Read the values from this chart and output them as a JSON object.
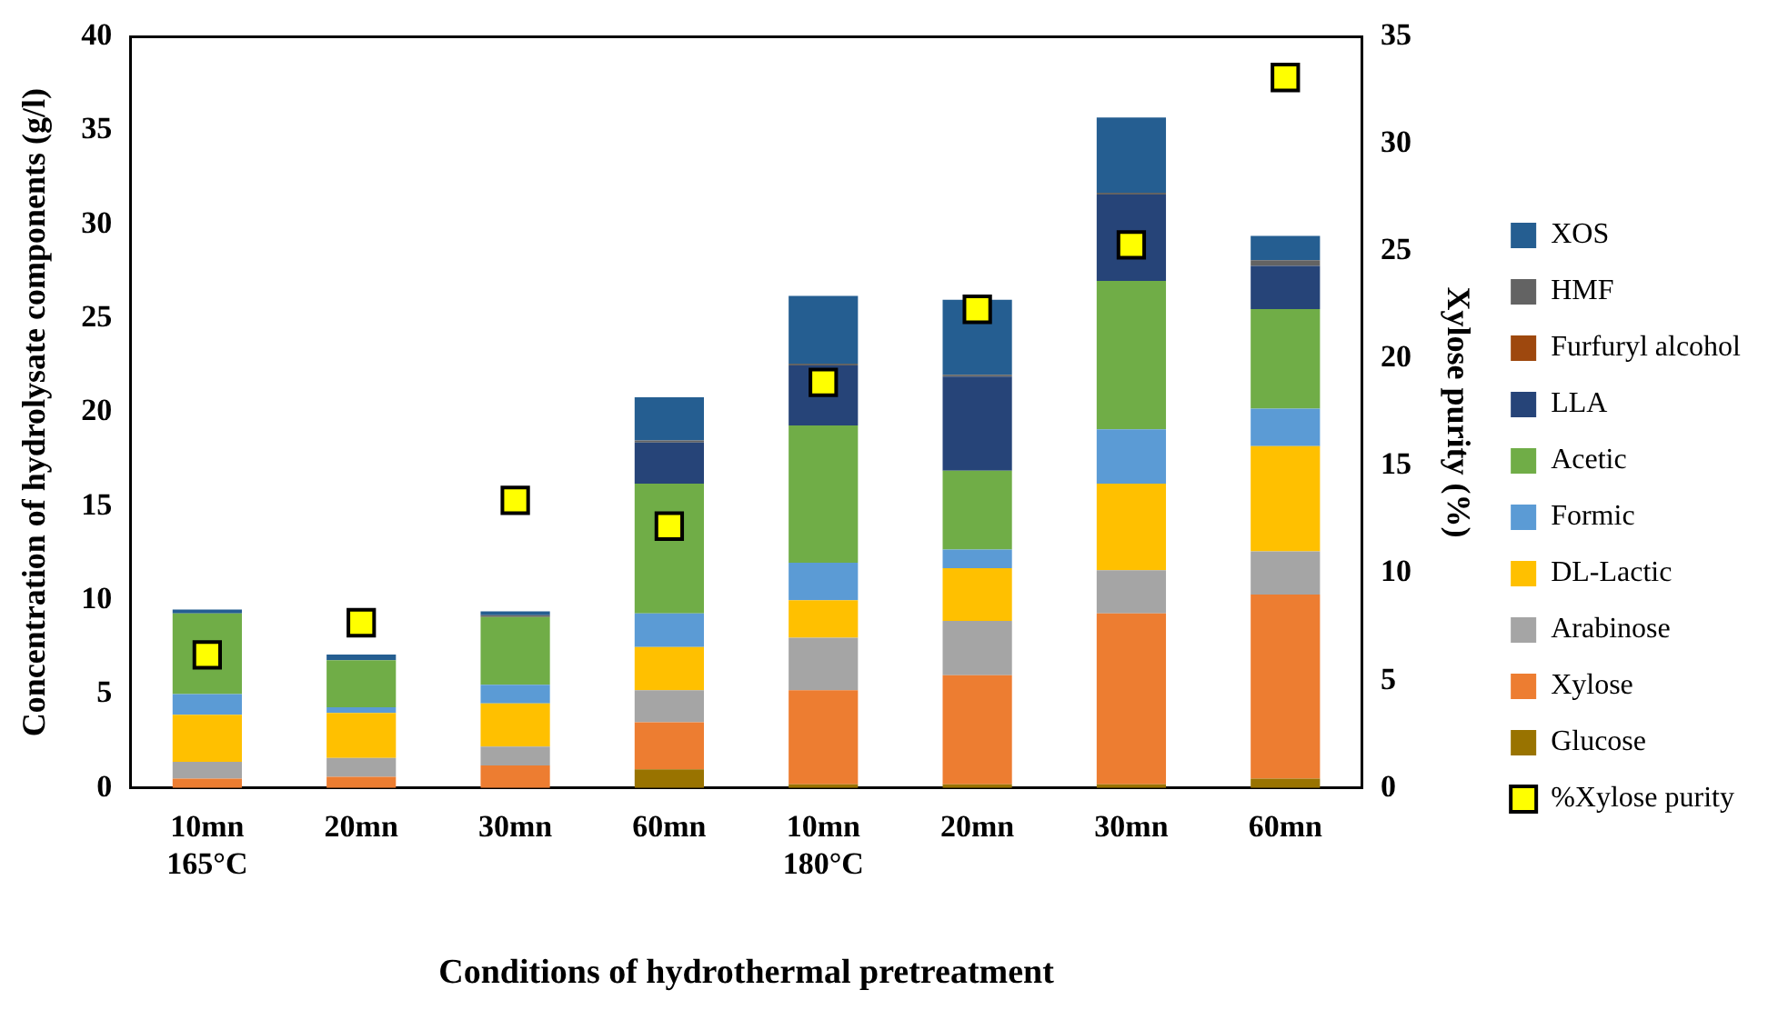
{
  "chart_data": {
    "type": "bar",
    "stacked": true,
    "xlabel": "Conditions of hydrothermal pretreatment",
    "ylabel": "Concentration of hydrolysate components (g/l)",
    "y2label": "Xylose purity (%)",
    "categories": [
      "10mn\n165°C",
      "20mn",
      "30mn",
      "60mn",
      "10mn\n180°C",
      "20mn",
      "30mn",
      "60mn"
    ],
    "series": [
      {
        "name": "Glucose",
        "color": "#997300",
        "values": [
          0,
          0,
          0,
          1.0,
          0.2,
          0.2,
          0.2,
          0.5
        ]
      },
      {
        "name": "Xylose",
        "color": "#ed7d31",
        "values": [
          0.5,
          0.6,
          1.2,
          2.5,
          5.0,
          5.8,
          9.1,
          9.8
        ]
      },
      {
        "name": "Arabinose",
        "color": "#a5a5a5",
        "values": [
          0.9,
          1.0,
          1.0,
          1.7,
          2.8,
          2.9,
          2.3,
          2.3
        ]
      },
      {
        "name": "DL-Lactic",
        "color": "#ffc000",
        "values": [
          2.5,
          2.4,
          2.3,
          2.3,
          2.0,
          2.8,
          4.6,
          5.6
        ]
      },
      {
        "name": "Formic",
        "color": "#5b9bd5",
        "values": [
          1.1,
          0.3,
          1.0,
          1.8,
          2.0,
          1.0,
          2.9,
          2.0
        ]
      },
      {
        "name": "Acetic",
        "color": "#70ad47",
        "values": [
          4.3,
          2.5,
          3.6,
          6.9,
          7.3,
          4.2,
          7.9,
          5.3
        ]
      },
      {
        "name": "LLA",
        "color": "#264478",
        "values": [
          0,
          0,
          0,
          2.2,
          3.2,
          5.0,
          4.6,
          2.3
        ]
      },
      {
        "name": "Furfuryl alcohol",
        "color": "#9e480e",
        "values": [
          0,
          0,
          0,
          0,
          0,
          0,
          0,
          0
        ]
      },
      {
        "name": "HMF",
        "color": "#636363",
        "values": [
          0,
          0,
          0.1,
          0.1,
          0.1,
          0.1,
          0.1,
          0.3
        ]
      },
      {
        "name": "XOS",
        "color": "#255e91",
        "values": [
          0.2,
          0.3,
          0.2,
          2.3,
          3.6,
          4.0,
          4.0,
          1.3
        ]
      },
      {
        "name": "%Xylose purity",
        "type": "scatter",
        "axis": "y2",
        "marker": "square",
        "color": "#ffff00",
        "values": [
          6.2,
          7.7,
          13.4,
          12.2,
          18.9,
          22.3,
          25.3,
          33.1
        ]
      }
    ],
    "ylim": [
      0,
      40
    ],
    "yticks": [
      0,
      5,
      10,
      15,
      20,
      25,
      30,
      35,
      40
    ],
    "y2lim": [
      0,
      35
    ],
    "y2ticks": [
      0,
      5,
      10,
      15,
      20,
      25,
      30,
      35
    ],
    "grid": false,
    "legend": "right"
  }
}
